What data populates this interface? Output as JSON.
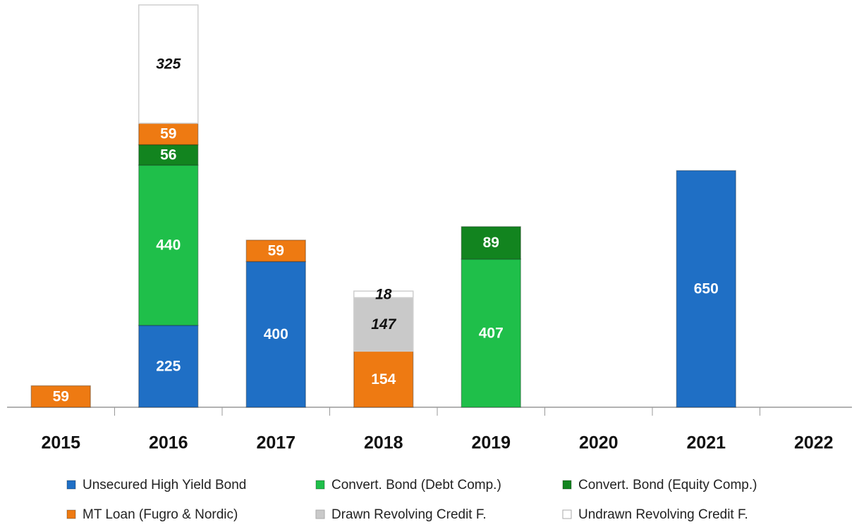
{
  "chart_data": {
    "type": "stacked_bar",
    "categories": [
      "2015",
      "2016",
      "2017",
      "2018",
      "2019",
      "2020",
      "2021",
      "2022"
    ],
    "series": [
      {
        "name": "Unsecured High Yield Bond",
        "color": "#1f6fc5",
        "values": [
          null,
          225,
          400,
          null,
          null,
          null,
          650,
          null
        ]
      },
      {
        "name": "Convert. Bond (Debt Comp.)",
        "color": "#1fbf4a",
        "values": [
          null,
          440,
          null,
          null,
          407,
          null,
          null,
          null
        ]
      },
      {
        "name": "Convert. Bond (Equity Comp.)",
        "color": "#12841f",
        "values": [
          null,
          56,
          null,
          null,
          89,
          null,
          null,
          null
        ]
      },
      {
        "name": "MT Loan (Fugro & Nordic)",
        "color": "#ee7a12",
        "values": [
          59,
          59,
          59,
          154,
          null,
          null,
          null,
          null
        ]
      },
      {
        "name": "Drawn Revolving Credit F.",
        "color": "#c9c9c9",
        "values": [
          null,
          null,
          null,
          147,
          null,
          null,
          null,
          null
        ]
      },
      {
        "name": "Undrawn Revolving Credit F.",
        "color": "#ffffff",
        "values": [
          null,
          325,
          null,
          18,
          null,
          null,
          null,
          null
        ]
      }
    ]
  }
}
